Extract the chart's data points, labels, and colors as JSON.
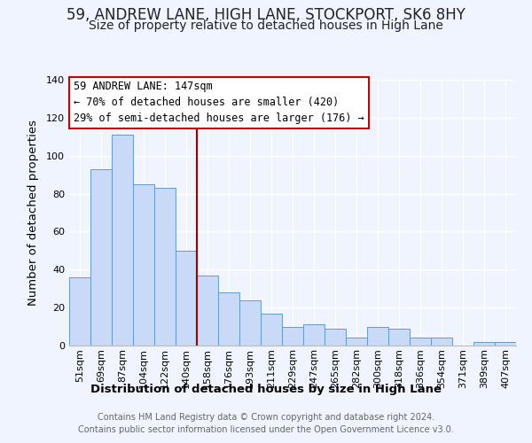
{
  "title": "59, ANDREW LANE, HIGH LANE, STOCKPORT, SK6 8HY",
  "subtitle": "Size of property relative to detached houses in High Lane",
  "xlabel": "Distribution of detached houses by size in High Lane",
  "ylabel": "Number of detached properties",
  "categories": [
    "51sqm",
    "69sqm",
    "87sqm",
    "104sqm",
    "122sqm",
    "140sqm",
    "158sqm",
    "176sqm",
    "193sqm",
    "211sqm",
    "229sqm",
    "247sqm",
    "265sqm",
    "282sqm",
    "300sqm",
    "318sqm",
    "336sqm",
    "354sqm",
    "371sqm",
    "389sqm",
    "407sqm"
  ],
  "values": [
    36,
    93,
    111,
    85,
    83,
    50,
    37,
    28,
    24,
    17,
    10,
    11,
    9,
    4,
    10,
    9,
    4,
    4,
    0,
    2,
    2
  ],
  "bar_color": "#c9daf8",
  "bar_edge_color": "#6699cc",
  "vline_x": 5.5,
  "vline_color": "#990000",
  "annotation_title": "59 ANDREW LANE: 147sqm",
  "annotation_line1": "← 70% of detached houses are smaller (420)",
  "annotation_line2": "29% of semi-detached houses are larger (176) →",
  "annotation_box_color": "#ffffff",
  "annotation_box_edge": "#cc0000",
  "ylim": [
    0,
    140
  ],
  "yticks": [
    0,
    20,
    40,
    60,
    80,
    100,
    120,
    140
  ],
  "footer1": "Contains HM Land Registry data © Crown copyright and database right 2024.",
  "footer2": "Contains public sector information licensed under the Open Government Licence v3.0.",
  "background_color": "#f0f4ff",
  "grid_color": "#ffffff",
  "title_fontsize": 12,
  "subtitle_fontsize": 10,
  "axis_label_fontsize": 9.5,
  "tick_fontsize": 8,
  "footer_fontsize": 7,
  "ann_fontsize": 8.5
}
